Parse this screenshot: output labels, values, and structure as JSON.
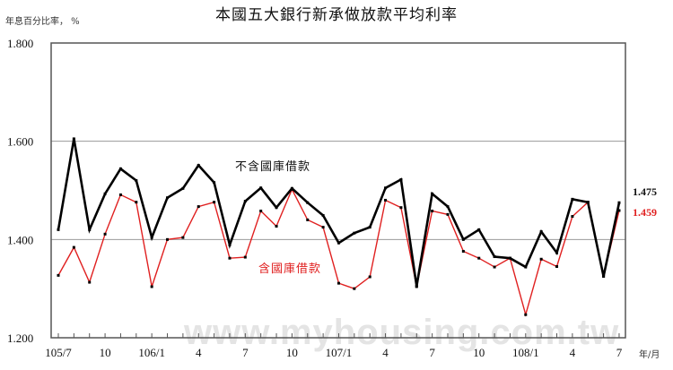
{
  "chart_data": {
    "type": "line",
    "title": "本國五大銀行新承做放款平均利率",
    "ylabel": "年息百分比率, %",
    "xlabel": "年/月",
    "ylim": [
      1.2,
      1.8
    ],
    "yticks": [
      "1.800",
      "1.600",
      "1.400",
      "1.200"
    ],
    "grid": true,
    "x": [
      "105/7",
      "105/8",
      "105/9",
      "105/10",
      "105/11",
      "105/12",
      "106/1",
      "106/2",
      "106/3",
      "106/4",
      "106/5",
      "106/6",
      "106/7",
      "106/8",
      "106/9",
      "106/10",
      "106/11",
      "106/12",
      "107/1",
      "107/2",
      "107/3",
      "107/4",
      "107/5",
      "107/6",
      "107/7",
      "107/8",
      "107/9",
      "107/10",
      "107/11",
      "107/12",
      "108/1",
      "108/2",
      "108/3",
      "108/4",
      "108/5",
      "108/6",
      "108/7"
    ],
    "xtick_labels": [
      {
        "index": 0,
        "label": "105/7"
      },
      {
        "index": 3,
        "label": "10"
      },
      {
        "index": 6,
        "label": "106/1"
      },
      {
        "index": 9,
        "label": "4"
      },
      {
        "index": 12,
        "label": "7"
      },
      {
        "index": 15,
        "label": "10"
      },
      {
        "index": 18,
        "label": "107/1"
      },
      {
        "index": 21,
        "label": "4"
      },
      {
        "index": 24,
        "label": "7"
      },
      {
        "index": 27,
        "label": "10"
      },
      {
        "index": 30,
        "label": "108/1"
      },
      {
        "index": 33,
        "label": "4"
      },
      {
        "index": 36,
        "label": "7"
      }
    ],
    "series": [
      {
        "name": "不含國庫借款",
        "color": "#000000",
        "values": [
          1.42,
          1.605,
          1.42,
          1.493,
          1.544,
          1.52,
          1.404,
          1.485,
          1.504,
          1.551,
          1.516,
          1.389,
          1.478,
          1.505,
          1.465,
          1.504,
          1.475,
          1.449,
          1.393,
          1.413,
          1.425,
          1.505,
          1.522,
          1.305,
          1.493,
          1.467,
          1.4,
          1.42,
          1.365,
          1.362,
          1.344,
          1.416,
          1.373,
          1.482,
          1.476,
          1.325,
          1.475
        ],
        "end_label": "1.475"
      },
      {
        "name": "含國庫借款",
        "color": "#e02020",
        "values": [
          1.327,
          1.384,
          1.313,
          1.411,
          1.491,
          1.476,
          1.304,
          1.4,
          1.404,
          1.467,
          1.476,
          1.362,
          1.364,
          1.458,
          1.427,
          1.502,
          1.44,
          1.425,
          1.311,
          1.3,
          1.324,
          1.48,
          1.465,
          1.304,
          1.458,
          1.451,
          1.376,
          1.362,
          1.344,
          1.362,
          1.247,
          1.36,
          1.345,
          1.447,
          1.476,
          1.325,
          1.459
        ],
        "end_label": "1.459"
      }
    ],
    "annotations": [
      {
        "text": "不含國庫借款",
        "series": 0
      },
      {
        "text": "含國庫借款",
        "series": 1
      }
    ],
    "legend_position": "inline annotations"
  },
  "labels": {
    "title": "本國五大銀行新承做放款平均利率",
    "y_unit": "年息百分比率， %",
    "x_unit": "年/月",
    "series_black": "不含國庫借款",
    "series_red": "含國庫借款",
    "end_black": "1.475",
    "end_red": "1.459",
    "watermark": "www.myhousing.com.tw"
  }
}
